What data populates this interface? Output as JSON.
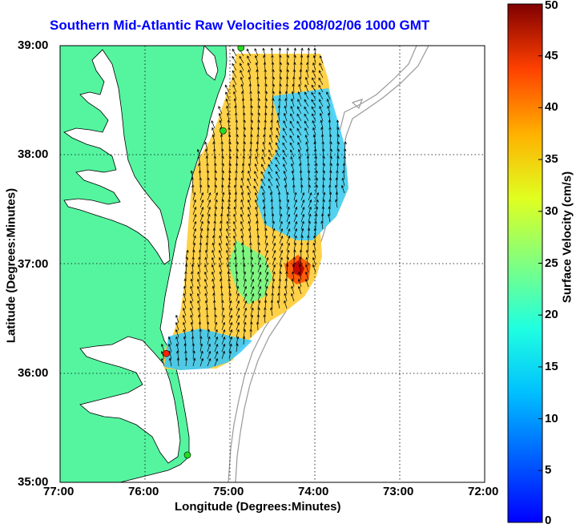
{
  "title": "Southern Mid-Atlantic Raw Velocities 2008/02/06 1000 GMT",
  "xlabel": "Longitude (Degrees:Minutes)",
  "ylabel": "Latitude (Degrees:Minutes)",
  "colorbar_label": "Surface Velocity (cm/s)",
  "x_ticks": [
    "77:00",
    "76:00",
    "75:00",
    "74:00",
    "73:00",
    "72:00"
  ],
  "y_ticks": [
    "39:00",
    "38:00",
    "37:00",
    "36:00",
    "35:00"
  ],
  "colorbar_ticks": [
    "50",
    "45",
    "40",
    "35",
    "30",
    "25",
    "20",
    "15",
    "10",
    "5",
    "0"
  ],
  "colors": {
    "land": "#55f5a0",
    "water": "#ffffff",
    "coast": "#000000",
    "bathymetry": "#999999",
    "title": "#0000ff",
    "station_green": "#22dd22",
    "station_red": "#ff2200"
  },
  "map": {
    "lon_range": [
      -77,
      -72
    ],
    "lat_range": [
      35,
      39
    ],
    "grid": true,
    "stations": [
      {
        "color": "green",
        "lon": -74.87,
        "lat": 38.98
      },
      {
        "color": "green",
        "lon": -75.08,
        "lat": 38.22
      },
      {
        "color": "red",
        "lon": -75.75,
        "lat": 36.18
      },
      {
        "color": "green",
        "lon": -75.5,
        "lat": 35.25
      }
    ]
  },
  "colorbar": {
    "min": 0,
    "max": 50,
    "colormap": "jet"
  }
}
